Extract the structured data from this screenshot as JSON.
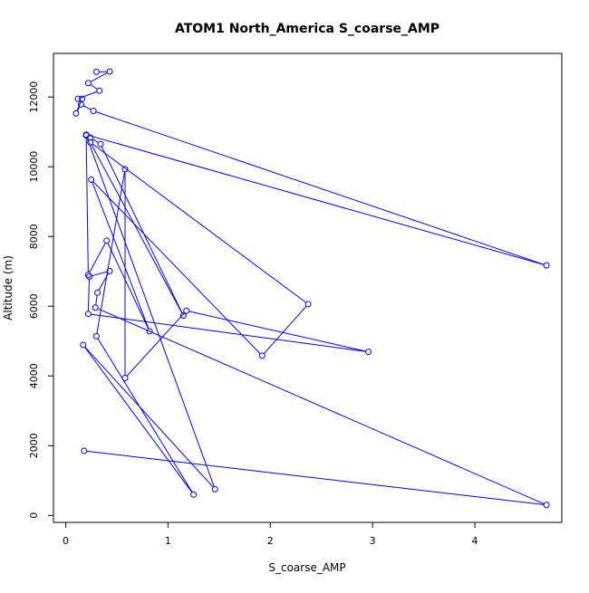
{
  "chart_data": {
    "type": "scatter",
    "title": "ATOM1 North_America S_coarse_AMP",
    "xlabel": "S_coarse_AMP",
    "ylabel": "Altitude (m)",
    "xlim": [
      -0.12,
      4.85
    ],
    "ylim": [
      -200,
      13250
    ],
    "xticks": [
      0,
      1,
      2,
      3,
      4
    ],
    "yticks": [
      0,
      2000,
      4000,
      6000,
      8000,
      10000,
      12000
    ],
    "style": "connected points (line + open circle markers)",
    "color": "#0000ff",
    "grid": false,
    "legend": "none",
    "series": [
      {
        "x": [
          0.3,
          0.43,
          0.22,
          0.33,
          0.12,
          0.16,
          0.1,
          0.15,
          0.27,
          4.7,
          0.2,
          0.24,
          0.34,
          1.15,
          0.24,
          2.37,
          1.92,
          0.25,
          0.82,
          0.4,
          0.22,
          0.2,
          1.46,
          0.17,
          1.25,
          0.3,
          0.58,
          0.58,
          1.18,
          2.96,
          0.22,
          0.23,
          0.43,
          0.31,
          0.29,
          4.7,
          0.18
        ],
        "y": [
          12720,
          12730,
          12400,
          12180,
          11950,
          11950,
          11530,
          11790,
          11600,
          7170,
          10920,
          10840,
          10650,
          5730,
          10700,
          6060,
          4580,
          9630,
          5280,
          7880,
          6900,
          10900,
          750,
          4890,
          600,
          5140,
          9930,
          3940,
          5870,
          4690,
          5780,
          6850,
          7010,
          6390,
          5960,
          300,
          1850
        ]
      }
    ]
  }
}
